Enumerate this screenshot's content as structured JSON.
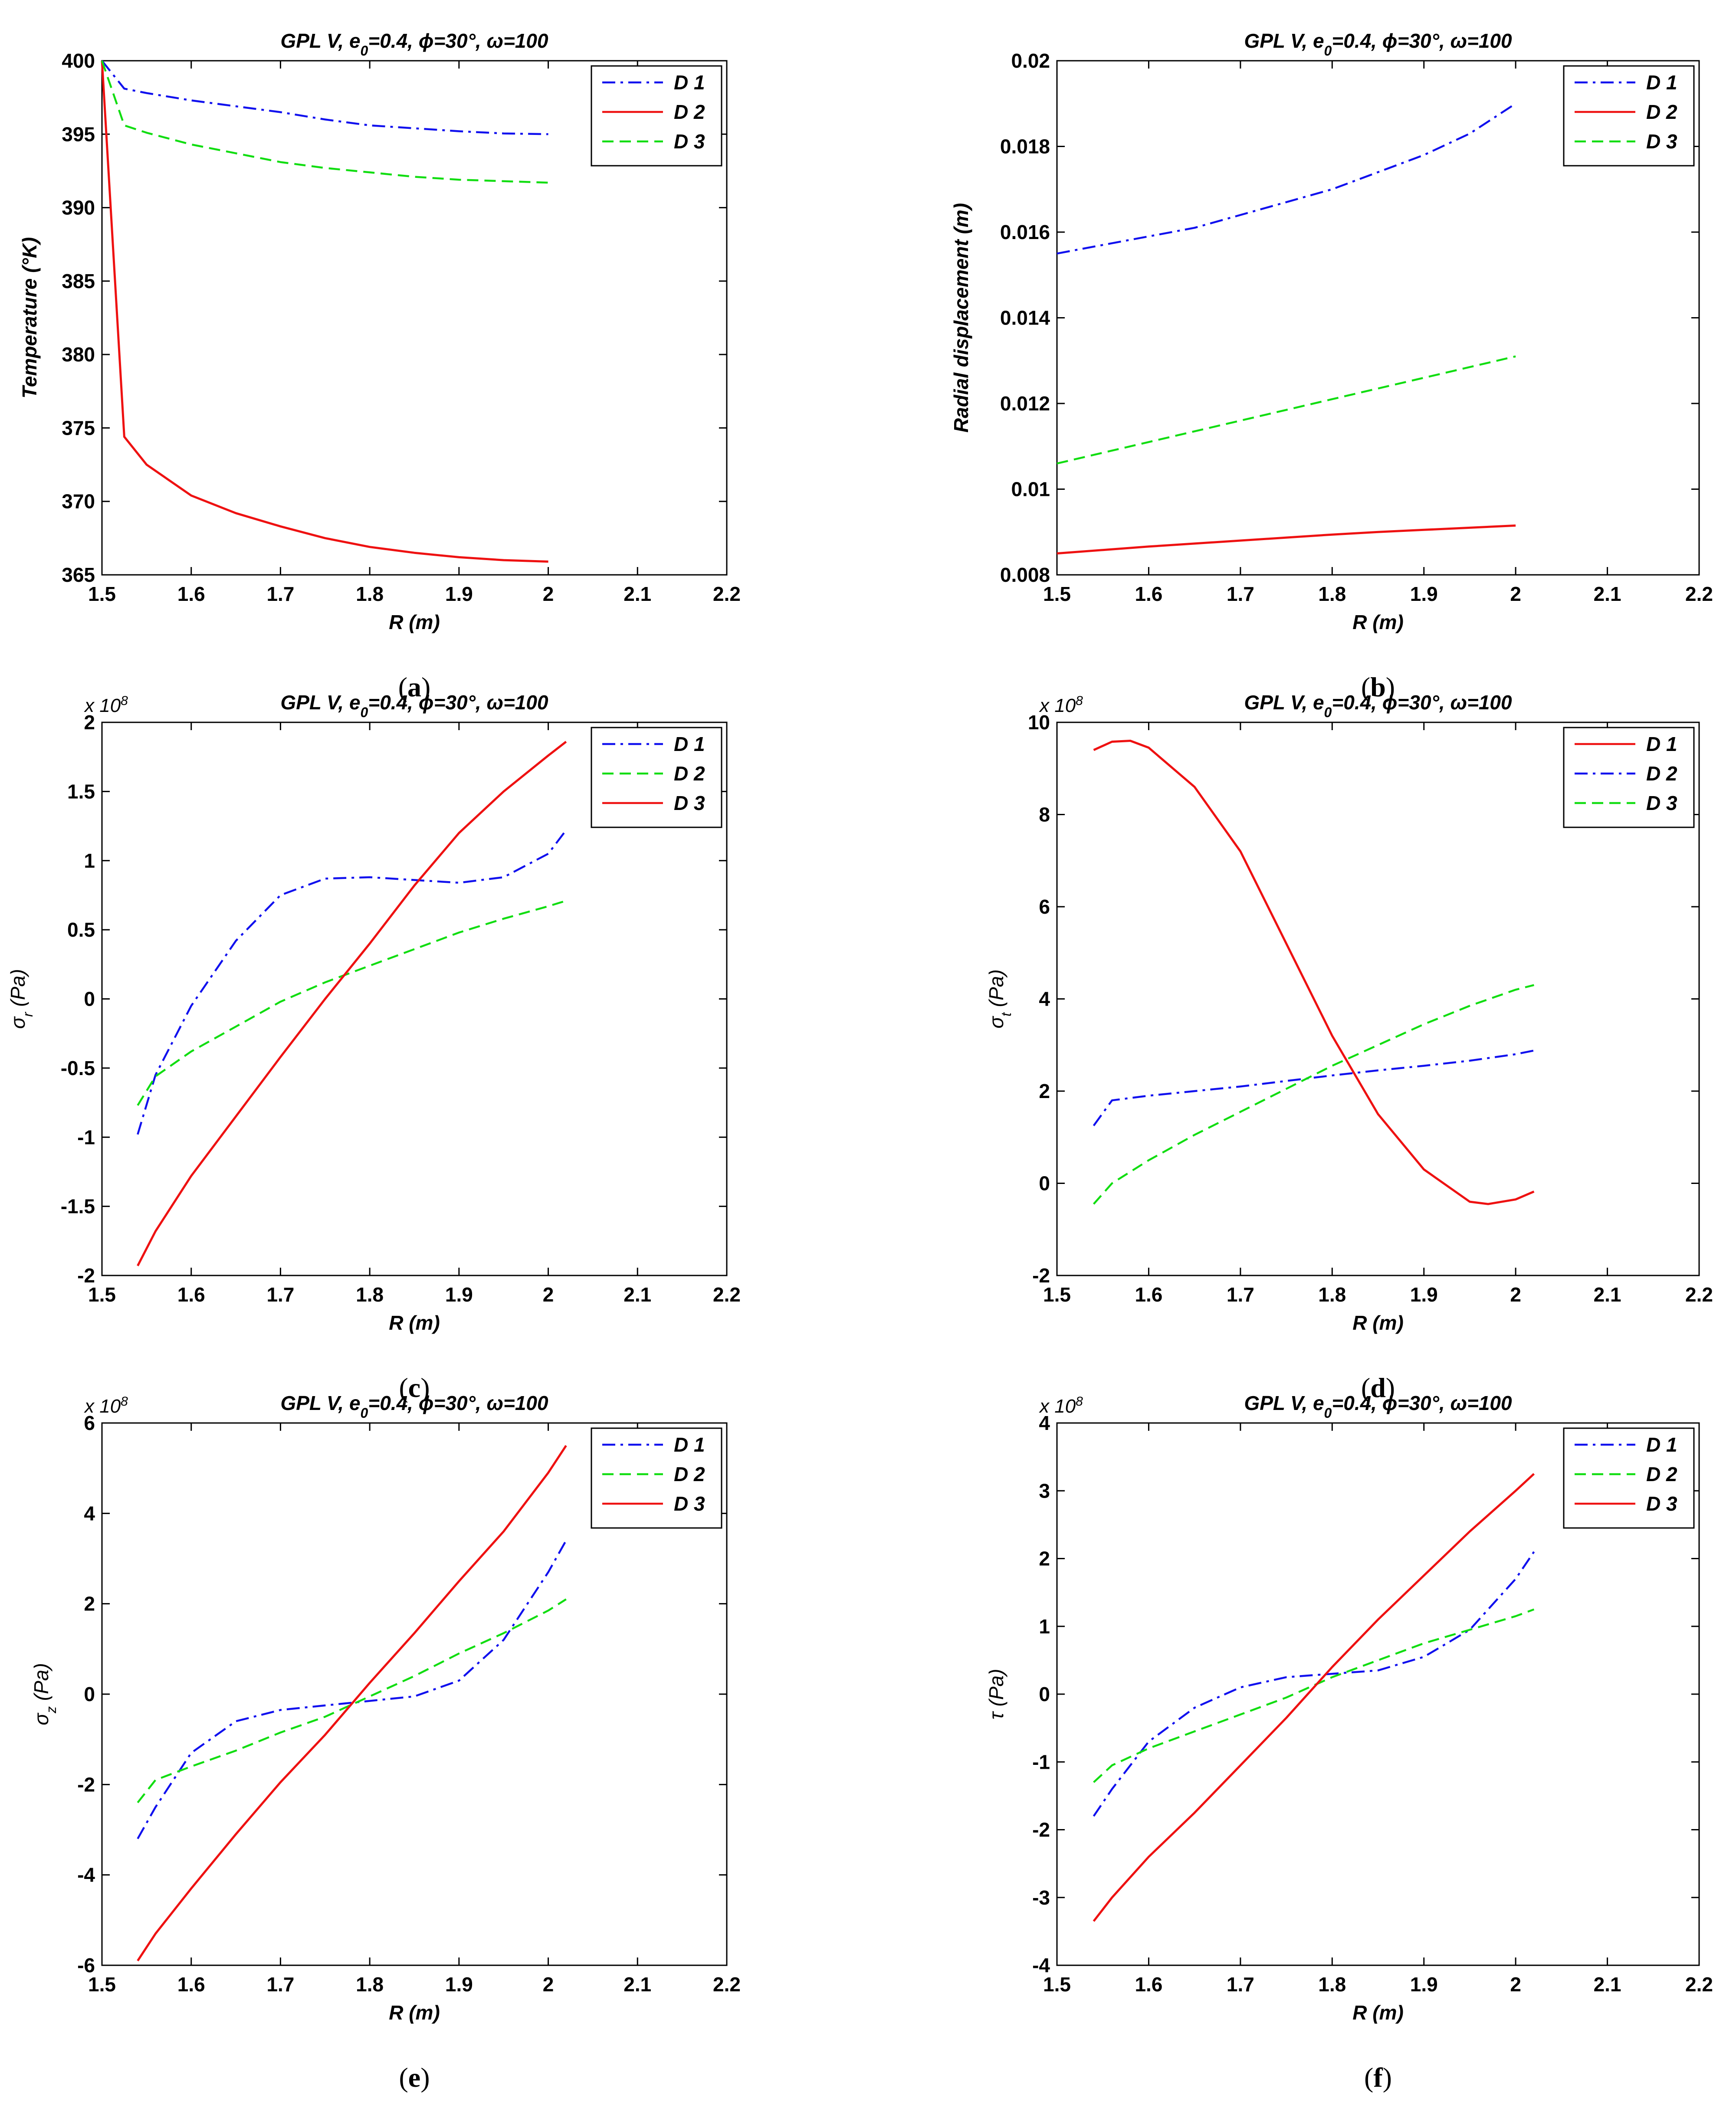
{
  "colors": {
    "blue": "#1010ee",
    "red": "#ee1111",
    "green": "#11dd11"
  },
  "chart_data": [
    {
      "id": "a",
      "type": "line",
      "title_parts": [
        "GPL V, e",
        "0",
        "=0.4, ",
        "ϕ",
        "=30°, ",
        "ω",
        "=100"
      ],
      "xlabel": "R (m)",
      "ylabel": "Temperature (°K)",
      "ylabel_sub": "",
      "ylabel_rest": "",
      "exponent": "",
      "caption": {
        "open": "(",
        "letter": "a",
        "close": ")"
      },
      "xlim": [
        1.5,
        2.2
      ],
      "ylim": [
        365,
        400
      ],
      "xticks": [
        1.5,
        1.6,
        1.7,
        1.8,
        1.9,
        2.0,
        2.1,
        2.2
      ],
      "xtick_labels": [
        "1.5",
        "1.6",
        "1.7",
        "1.8",
        "1.9",
        "2",
        "2.1",
        "2.2"
      ],
      "yticks": [
        365,
        370,
        375,
        380,
        385,
        390,
        395,
        400
      ],
      "ytick_labels": [
        "365",
        "370",
        "375",
        "380",
        "385",
        "390",
        "395",
        "400"
      ],
      "legend": "top-right",
      "series": [
        {
          "name": "D 1",
          "color": "blue",
          "style": "dashdot",
          "x": [
            1.5,
            1.525,
            1.55,
            1.6,
            1.65,
            1.7,
            1.75,
            1.8,
            1.85,
            1.9,
            1.95,
            2.0
          ],
          "y": [
            400,
            398.1,
            397.8,
            397.3,
            396.9,
            396.5,
            396.0,
            395.6,
            395.4,
            395.2,
            395.05,
            395.0
          ]
        },
        {
          "name": "D 2",
          "color": "red",
          "style": "solid",
          "x": [
            1.5,
            1.525,
            1.55,
            1.6,
            1.65,
            1.7,
            1.75,
            1.8,
            1.85,
            1.9,
            1.95,
            2.0
          ],
          "y": [
            400,
            374.4,
            372.5,
            370.4,
            369.2,
            368.3,
            367.5,
            366.9,
            366.5,
            366.2,
            366.0,
            365.9
          ]
        },
        {
          "name": "D 3",
          "color": "green",
          "style": "dashed",
          "x": [
            1.5,
            1.525,
            1.55,
            1.6,
            1.65,
            1.7,
            1.75,
            1.8,
            1.85,
            1.9,
            1.95,
            2.0
          ],
          "y": [
            400,
            395.6,
            395.1,
            394.3,
            393.7,
            393.1,
            392.7,
            392.4,
            392.1,
            391.9,
            391.8,
            391.7
          ]
        }
      ]
    },
    {
      "id": "b",
      "type": "line",
      "title_parts": [
        "GPL V, e",
        "0",
        "=0.4, ",
        "ϕ",
        "=30°, ",
        "ω",
        "=100"
      ],
      "xlabel": "R (m)",
      "ylabel": "Radial displacement (m)",
      "ylabel_sub": "",
      "ylabel_rest": "",
      "exponent": "",
      "caption": {
        "open": "(",
        "letter": "b",
        "close": ")"
      },
      "xlim": [
        1.5,
        2.2
      ],
      "ylim": [
        0.008,
        0.02
      ],
      "xticks": [
        1.5,
        1.6,
        1.7,
        1.8,
        1.9,
        2.0,
        2.1,
        2.2
      ],
      "xtick_labels": [
        "1.5",
        "1.6",
        "1.7",
        "1.8",
        "1.9",
        "2",
        "2.1",
        "2.2"
      ],
      "yticks": [
        0.008,
        0.01,
        0.012,
        0.014,
        0.016,
        0.018,
        0.02
      ],
      "ytick_labels": [
        "0.008",
        "0.01",
        "0.012",
        "0.014",
        "0.016",
        "0.018",
        "0.02"
      ],
      "legend": "top-right",
      "series": [
        {
          "name": "D 1",
          "color": "blue",
          "style": "dashdot",
          "x": [
            1.5,
            1.55,
            1.6,
            1.65,
            1.7,
            1.75,
            1.8,
            1.85,
            1.9,
            1.95,
            2.0
          ],
          "y": [
            0.0155,
            0.0157,
            0.0159,
            0.0161,
            0.0164,
            0.0167,
            0.017,
            0.0174,
            0.0178,
            0.0183,
            0.019
          ]
        },
        {
          "name": "D 2",
          "color": "red",
          "style": "solid",
          "x": [
            1.5,
            1.55,
            1.6,
            1.65,
            1.7,
            1.75,
            1.8,
            1.85,
            1.9,
            1.95,
            2.0
          ],
          "y": [
            0.0085,
            0.00858,
            0.00866,
            0.00873,
            0.0088,
            0.00887,
            0.00894,
            0.009,
            0.00905,
            0.0091,
            0.00915
          ]
        },
        {
          "name": "D 3",
          "color": "green",
          "style": "dashed",
          "x": [
            1.5,
            1.55,
            1.6,
            1.65,
            1.7,
            1.75,
            1.8,
            1.85,
            1.9,
            1.95,
            2.0
          ],
          "y": [
            0.0106,
            0.01085,
            0.0111,
            0.01135,
            0.0116,
            0.01185,
            0.0121,
            0.01235,
            0.0126,
            0.01285,
            0.0131
          ]
        }
      ]
    },
    {
      "id": "c",
      "type": "line",
      "title_parts": [
        "GPL V, e",
        "0",
        "=0.4, ",
        "ϕ",
        "=30°, ",
        "ω",
        "=100"
      ],
      "xlabel": "R (m)",
      "ylabel": "σ",
      "ylabel_sub": "r",
      "ylabel_rest": " (Pa)",
      "exponent": "x 10",
      "exponent_power": "8",
      "caption": {
        "open": "(",
        "letter": "c",
        "close": ")"
      },
      "xlim": [
        1.5,
        2.2
      ],
      "ylim": [
        -2,
        2
      ],
      "xticks": [
        1.5,
        1.6,
        1.7,
        1.8,
        1.9,
        2.0,
        2.1,
        2.2
      ],
      "xtick_labels": [
        "1.5",
        "1.6",
        "1.7",
        "1.8",
        "1.9",
        "2",
        "2.1",
        "2.2"
      ],
      "yticks": [
        -2,
        -1.5,
        -1,
        -0.5,
        0,
        0.5,
        1,
        1.5,
        2
      ],
      "ytick_labels": [
        "-2",
        "-1.5",
        "-1",
        "-0.5",
        "0",
        "0.5",
        "1",
        "1.5",
        "2"
      ],
      "legend": "top-right",
      "series": [
        {
          "name": "D 1",
          "color": "blue",
          "style": "dashdot",
          "x": [
            1.54,
            1.56,
            1.6,
            1.65,
            1.7,
            1.75,
            1.8,
            1.85,
            1.9,
            1.95,
            2.0,
            2.02
          ],
          "y": [
            -0.98,
            -0.55,
            -0.05,
            0.42,
            0.75,
            0.87,
            0.88,
            0.86,
            0.84,
            0.88,
            1.05,
            1.22
          ]
        },
        {
          "name": "D 2",
          "color": "green",
          "style": "dashed",
          "x": [
            1.54,
            1.56,
            1.6,
            1.65,
            1.7,
            1.75,
            1.8,
            1.85,
            1.9,
            1.95,
            2.0,
            2.02
          ],
          "y": [
            -0.77,
            -0.56,
            -0.38,
            -0.2,
            -0.02,
            0.12,
            0.24,
            0.36,
            0.48,
            0.58,
            0.67,
            0.71
          ]
        },
        {
          "name": "D 3",
          "color": "red",
          "style": "solid",
          "x": [
            1.54,
            1.56,
            1.6,
            1.65,
            1.7,
            1.75,
            1.8,
            1.85,
            1.9,
            1.95,
            2.0,
            2.02
          ],
          "y": [
            -1.93,
            -1.68,
            -1.28,
            -0.85,
            -0.42,
            0.0,
            0.4,
            0.82,
            1.2,
            1.5,
            1.76,
            1.86
          ]
        }
      ]
    },
    {
      "id": "d",
      "type": "line",
      "title_parts": [
        "GPL V, e",
        "0",
        "=0.4, ",
        "ϕ",
        "=30°, ",
        "ω",
        "=100"
      ],
      "xlabel": "R (m)",
      "ylabel": "σ",
      "ylabel_sub": "t",
      "ylabel_rest": " (Pa)",
      "exponent": "x 10",
      "exponent_power": "8",
      "caption": {
        "open": "(",
        "letter": "d",
        "close": ")"
      },
      "xlim": [
        1.5,
        2.2
      ],
      "ylim": [
        -2,
        10
      ],
      "xticks": [
        1.5,
        1.6,
        1.7,
        1.8,
        1.9,
        2.0,
        2.1,
        2.2
      ],
      "xtick_labels": [
        "1.5",
        "1.6",
        "1.7",
        "1.8",
        "1.9",
        "2",
        "2.1",
        "2.2"
      ],
      "yticks": [
        -2,
        0,
        2,
        4,
        6,
        8,
        10
      ],
      "ytick_labels": [
        "-2",
        "0",
        "2",
        "4",
        "6",
        "8",
        "10"
      ],
      "legend": "top-right",
      "series": [
        {
          "name": "D 1",
          "color": "red",
          "style": "solid",
          "x": [
            1.54,
            1.56,
            1.58,
            1.6,
            1.65,
            1.7,
            1.75,
            1.8,
            1.85,
            1.9,
            1.95,
            1.97,
            2.0,
            2.02
          ],
          "y": [
            9.4,
            9.58,
            9.6,
            9.45,
            8.6,
            7.2,
            5.2,
            3.2,
            1.5,
            0.3,
            -0.4,
            -0.45,
            -0.35,
            -0.18
          ]
        },
        {
          "name": "D 2",
          "color": "blue",
          "style": "dashdot",
          "x": [
            1.54,
            1.56,
            1.6,
            1.65,
            1.7,
            1.75,
            1.8,
            1.85,
            1.9,
            1.95,
            2.0,
            2.02
          ],
          "y": [
            1.25,
            1.8,
            1.9,
            2.0,
            2.1,
            2.22,
            2.34,
            2.45,
            2.55,
            2.66,
            2.8,
            2.88
          ]
        },
        {
          "name": "D 3",
          "color": "green",
          "style": "dashed",
          "x": [
            1.54,
            1.56,
            1.6,
            1.65,
            1.7,
            1.75,
            1.8,
            1.85,
            1.9,
            1.95,
            2.0,
            2.02
          ],
          "y": [
            -0.45,
            0.0,
            0.5,
            1.05,
            1.55,
            2.05,
            2.55,
            3.0,
            3.45,
            3.85,
            4.2,
            4.3
          ]
        }
      ]
    },
    {
      "id": "e",
      "type": "line",
      "title_parts": [
        "GPL V, e",
        "0",
        "=0.4, ",
        "ϕ",
        "=30°, ",
        "ω",
        "=100"
      ],
      "xlabel": "R (m)",
      "ylabel": "σ",
      "ylabel_sub": "z",
      "ylabel_rest": " (Pa)",
      "exponent": "x 10",
      "exponent_power": "8",
      "caption": {
        "open": "(",
        "letter": "e",
        "close": ")"
      },
      "xlim": [
        1.5,
        2.2
      ],
      "ylim": [
        -6,
        6
      ],
      "xticks": [
        1.5,
        1.6,
        1.7,
        1.8,
        1.9,
        2.0,
        2.1,
        2.2
      ],
      "xtick_labels": [
        "1.5",
        "1.6",
        "1.7",
        "1.8",
        "1.9",
        "2",
        "2.1",
        "2.2"
      ],
      "yticks": [
        -6,
        -4,
        -2,
        0,
        2,
        4,
        6
      ],
      "ytick_labels": [
        "-6",
        "-4",
        "-2",
        "0",
        "2",
        "4",
        "6"
      ],
      "legend": "top-right",
      "series": [
        {
          "name": "D 1",
          "color": "blue",
          "style": "dashdot",
          "x": [
            1.54,
            1.56,
            1.6,
            1.65,
            1.7,
            1.75,
            1.8,
            1.85,
            1.9,
            1.95,
            2.0,
            2.02
          ],
          "y": [
            -3.2,
            -2.5,
            -1.3,
            -0.6,
            -0.35,
            -0.25,
            -0.15,
            -0.05,
            0.3,
            1.2,
            2.7,
            3.4
          ]
        },
        {
          "name": "D 2",
          "color": "green",
          "style": "dashed",
          "x": [
            1.54,
            1.56,
            1.6,
            1.65,
            1.7,
            1.75,
            1.8,
            1.85,
            1.9,
            1.95,
            2.0,
            2.02
          ],
          "y": [
            -2.4,
            -1.9,
            -1.6,
            -1.25,
            -0.85,
            -0.5,
            -0.05,
            0.4,
            0.9,
            1.35,
            1.85,
            2.1
          ]
        },
        {
          "name": "D 3",
          "color": "red",
          "style": "solid",
          "x": [
            1.54,
            1.56,
            1.6,
            1.65,
            1.7,
            1.75,
            1.8,
            1.85,
            1.9,
            1.95,
            2.0,
            2.02
          ],
          "y": [
            -5.9,
            -5.3,
            -4.3,
            -3.1,
            -1.95,
            -0.9,
            0.25,
            1.35,
            2.5,
            3.6,
            4.9,
            5.5
          ]
        }
      ]
    },
    {
      "id": "f",
      "type": "line",
      "title_parts": [
        "GPL V, e",
        "0",
        "=0.4, ",
        "ϕ",
        "=30°, ",
        "ω",
        "=100"
      ],
      "xlabel": "R (m)",
      "ylabel": "τ",
      "ylabel_sub": "",
      "ylabel_rest": " (Pa)",
      "exponent": "x 10",
      "exponent_power": "8",
      "caption": {
        "open": "(",
        "letter": "f",
        "close": ")"
      },
      "xlim": [
        1.5,
        2.2
      ],
      "ylim": [
        -4,
        4
      ],
      "xticks": [
        1.5,
        1.6,
        1.7,
        1.8,
        1.9,
        2.0,
        2.1,
        2.2
      ],
      "xtick_labels": [
        "1.5",
        "1.6",
        "1.7",
        "1.8",
        "1.9",
        "2",
        "2.1",
        "2.2"
      ],
      "yticks": [
        -4,
        -3,
        -2,
        -1,
        0,
        1,
        2,
        3,
        4
      ],
      "ytick_labels": [
        "-4",
        "-3",
        "-2",
        "-1",
        "0",
        "1",
        "2",
        "3",
        "4"
      ],
      "legend": "top-right",
      "series": [
        {
          "name": "D 1",
          "color": "blue",
          "style": "dashdot",
          "x": [
            1.54,
            1.56,
            1.6,
            1.65,
            1.7,
            1.75,
            1.8,
            1.85,
            1.9,
            1.95,
            2.0,
            2.02
          ],
          "y": [
            -1.8,
            -1.4,
            -0.7,
            -0.2,
            0.1,
            0.25,
            0.3,
            0.35,
            0.55,
            0.95,
            1.7,
            2.1
          ]
        },
        {
          "name": "D 2",
          "color": "green",
          "style": "dashed",
          "x": [
            1.54,
            1.56,
            1.6,
            1.65,
            1.7,
            1.75,
            1.8,
            1.85,
            1.9,
            1.95,
            2.0,
            2.02
          ],
          "y": [
            -1.3,
            -1.05,
            -0.8,
            -0.55,
            -0.3,
            -0.05,
            0.25,
            0.5,
            0.75,
            0.95,
            1.15,
            1.25
          ]
        },
        {
          "name": "D 3",
          "color": "red",
          "style": "solid",
          "x": [
            1.54,
            1.56,
            1.6,
            1.65,
            1.7,
            1.75,
            1.8,
            1.85,
            1.9,
            1.95,
            2.0,
            2.02
          ],
          "y": [
            -3.35,
            -3.0,
            -2.4,
            -1.75,
            -1.05,
            -0.35,
            0.4,
            1.1,
            1.75,
            2.4,
            3.0,
            3.25
          ]
        }
      ]
    }
  ]
}
